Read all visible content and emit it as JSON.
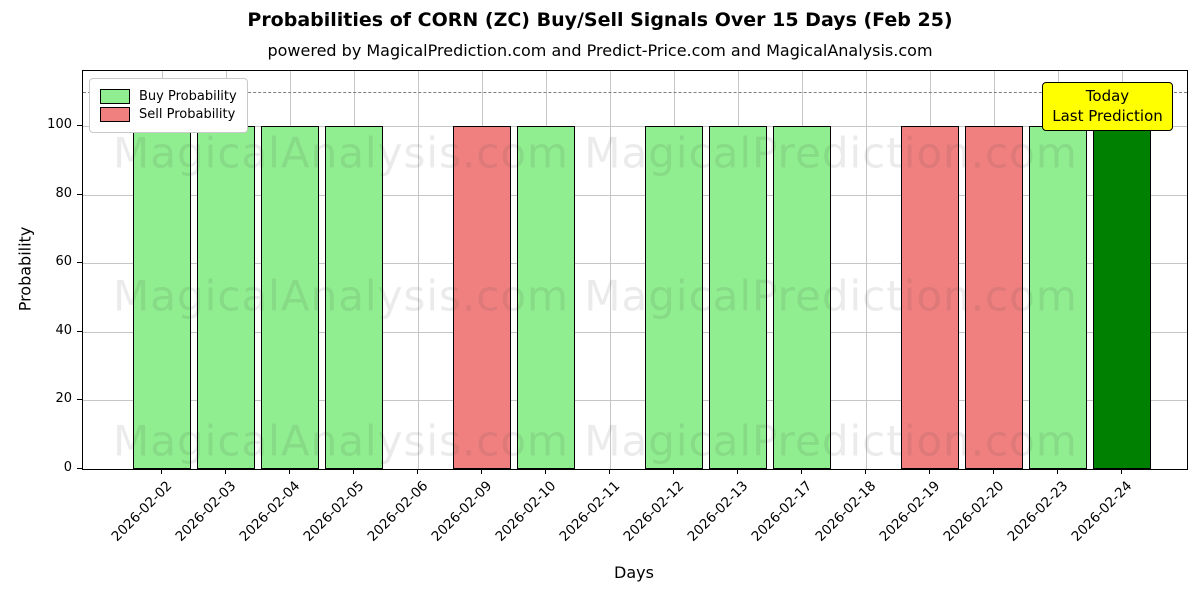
{
  "title": "Probabilities of CORN (ZC) Buy/Sell Signals Over 15 Days (Feb 25)",
  "subtitle": "powered by MagicalPrediction.com and Predict-Price.com and MagicalAnalysis.com",
  "annotation": {
    "line1": "Today",
    "line2": "Last Prediction",
    "bg_color": "#ffff00"
  },
  "legend": {
    "items": [
      {
        "label": "Buy Probability",
        "color": "#90EE90"
      },
      {
        "label": "Sell Probability",
        "color": "#F08080"
      }
    ]
  },
  "watermarks": {
    "left": "MagicalAnalysis.com",
    "right": "MagicalPrediction.com"
  },
  "colors": {
    "buy": "#90EE90",
    "sell": "#F08080",
    "today": "#008000",
    "grid": "#c6c6c6",
    "dashed_line": "#7f7f7f",
    "axis": "#000000",
    "annotation_bg": "#ffff00"
  },
  "chart_data": {
    "type": "bar",
    "title": "Probabilities of CORN (ZC) Buy/Sell Signals Over 15 Days (Feb 25)",
    "xlabel": "Days",
    "ylabel": "Probability",
    "ylim": [
      0,
      116
    ],
    "yticks": [
      0,
      20,
      40,
      60,
      80,
      100
    ],
    "grid": true,
    "legend_position": "upper left",
    "dashed_guide_y": 110,
    "categories": [
      "2026-02-02",
      "2026-02-03",
      "2026-02-04",
      "2026-02-05",
      "2026-02-06",
      "2026-02-09",
      "2026-02-10",
      "2026-02-11",
      "2026-02-12",
      "2026-02-13",
      "2026-02-17",
      "2026-02-18",
      "2026-02-19",
      "2026-02-20",
      "2026-02-23",
      "2026-02-24"
    ],
    "series": [
      {
        "name": "Buy Probability",
        "color": "#90EE90",
        "values": [
          100,
          100,
          100,
          100,
          0,
          0,
          100,
          0,
          100,
          100,
          100,
          0,
          0,
          0,
          100,
          0
        ]
      },
      {
        "name": "Sell Probability",
        "color": "#F08080",
        "values": [
          0,
          0,
          0,
          0,
          0,
          100,
          0,
          0,
          0,
          0,
          0,
          0,
          100,
          100,
          0,
          0
        ]
      },
      {
        "name": "Today Last Prediction",
        "color": "#008000",
        "values": [
          0,
          0,
          0,
          0,
          0,
          0,
          0,
          0,
          0,
          0,
          0,
          0,
          0,
          0,
          0,
          100
        ]
      }
    ]
  }
}
